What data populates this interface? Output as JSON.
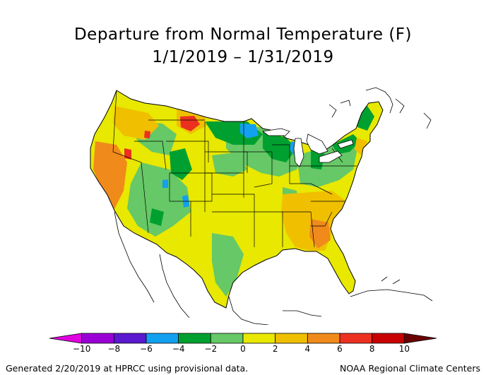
{
  "title": {
    "line1": "Departure from Normal Temperature (F)",
    "line2": "1/1/2019 – 1/31/2019"
  },
  "legend": {
    "ticks": [
      "−10",
      "−8",
      "−6",
      "−4",
      "−2",
      "0",
      "2",
      "4",
      "6",
      "8",
      "10"
    ],
    "colors": [
      "#e000e0",
      "#9a00d6",
      "#5a18d0",
      "#12a0f0",
      "#00a030",
      "#66c866",
      "#e8e800",
      "#f0c000",
      "#f08a1a",
      "#ec3020",
      "#c80000",
      "#6a0000"
    ]
  },
  "footer": {
    "left": "Generated 2/20/2019 at HPRCC using provisional data.",
    "right": "NOAA Regional Climate Centers"
  }
}
